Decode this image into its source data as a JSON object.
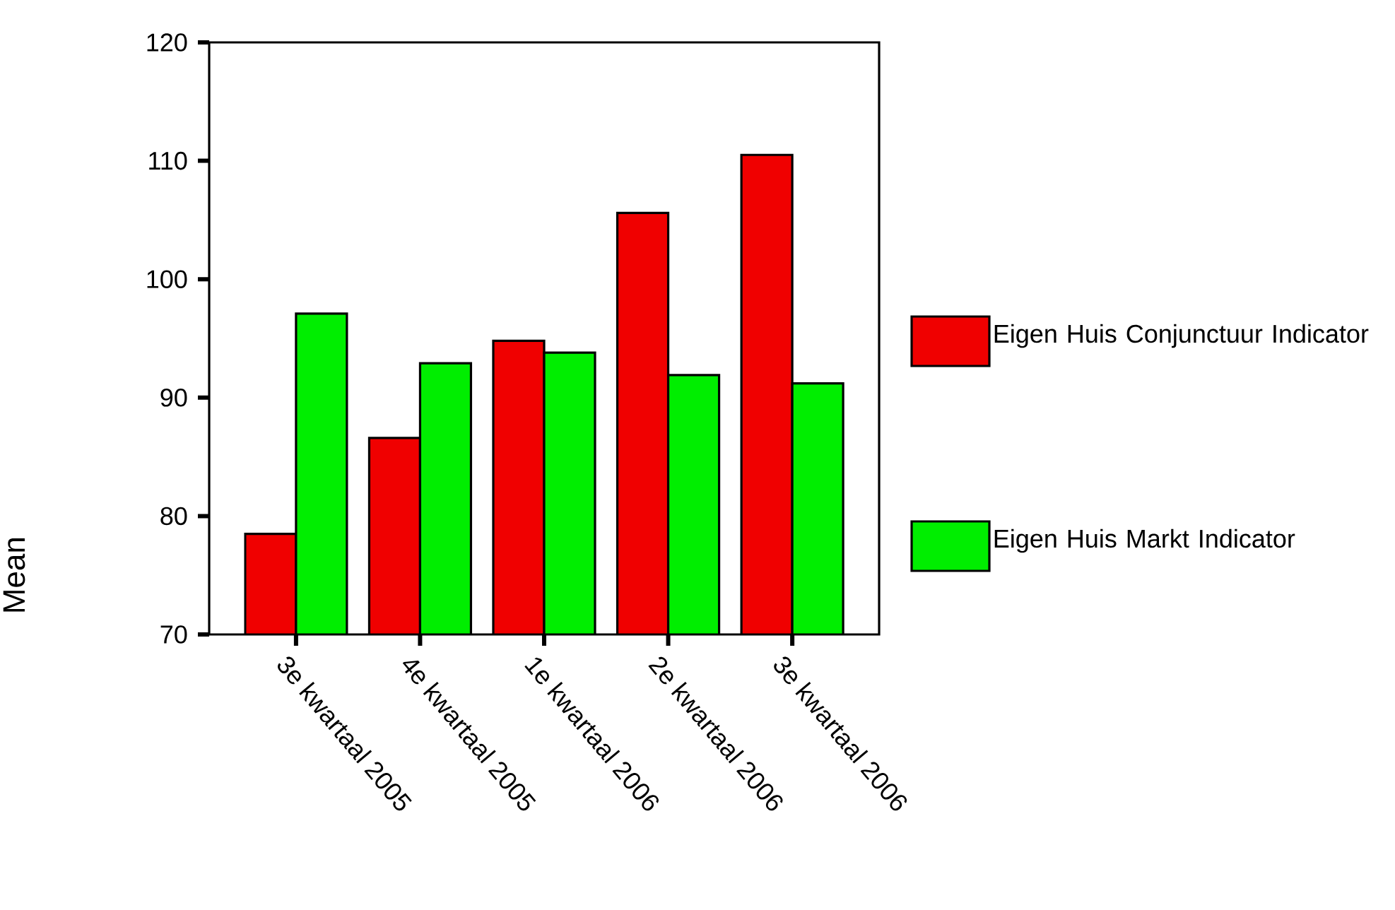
{
  "chart_data": {
    "type": "bar",
    "ylabel": "Mean",
    "categories": [
      "3e kwartaal 2005",
      "4e kwartaal 2005",
      "1e kwartaal 2006",
      "2e kwartaal 2006",
      "3e kwartaal 2006"
    ],
    "series": [
      {
        "name": "Eigen Huis Conjunctuur Indicator",
        "color": "#f00000",
        "values": [
          78.5,
          86.6,
          94.8,
          105.6,
          110.5
        ]
      },
      {
        "name": "Eigen Huis Markt Indicator",
        "color": "#00ee00",
        "values": [
          97.1,
          92.9,
          93.8,
          91.9,
          91.2
        ]
      }
    ],
    "ylim": [
      70,
      120
    ],
    "yticks": [
      70,
      80,
      90,
      100,
      110,
      120
    ],
    "legend": "right"
  }
}
